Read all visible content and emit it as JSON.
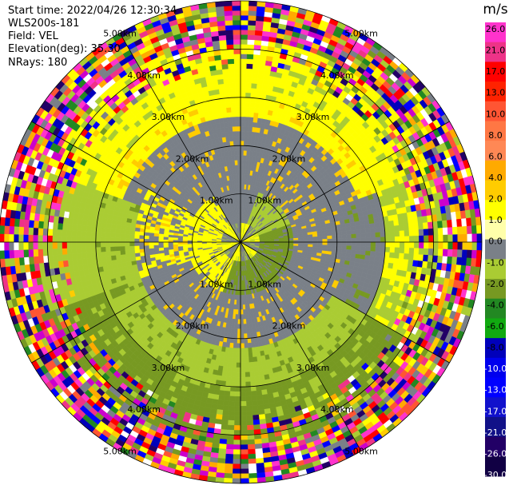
{
  "info": {
    "start_time": "Start time: 2022/04/26 12:30:34",
    "instrument": "WLS200s-181",
    "field": "Field: VEL",
    "elevation": "Elevation(deg): 35.30",
    "nrays": "NRays: 180"
  },
  "chart_data": {
    "type": "heatmap",
    "projection": "polar-ppi",
    "field": "VEL",
    "nrays": 180,
    "elevation_deg": 35.3,
    "range_rings_km": [
      1.0,
      2.0,
      3.0,
      4.0,
      5.0
    ],
    "range_ring_labels": [
      "1.00km",
      "2.00km",
      "3.00km",
      "4.00km",
      "5.00km"
    ],
    "spoke_angles_deg": [
      0,
      30,
      60,
      90,
      120,
      150,
      180,
      210,
      240,
      270,
      300,
      330
    ],
    "max_range_km": 5.0,
    "colorbar": {
      "unit": "m/s",
      "tick_labels": [
        "26.0",
        "21.0",
        "17.0",
        "13.0",
        "10.0",
        "8.0",
        "6.0",
        "4.0",
        "2.0",
        "1.0",
        "0.0",
        "-1.0",
        "-2.0",
        "-4.0",
        "-6.0",
        "-8.0",
        "-10.0",
        "-13.0",
        "-17.0",
        "-21.0",
        "-26.0",
        "-30.0"
      ],
      "colors": [
        "#ff33cc",
        "#ee3388",
        "#ff0000",
        "#ff2200",
        "#ff5533",
        "#ff7744",
        "#ff8855",
        "#ffaa00",
        "#ffcc00",
        "#ffff00",
        "#ffffaa",
        "#7a8088",
        "#aacc33",
        "#779922",
        "#228822",
        "#11aa11",
        "#0000bb",
        "#0000ee",
        "#0000ff",
        "#1111cc",
        "#111188",
        "#220066",
        "#110044"
      ],
      "vmin": -30.0,
      "vmax": 26.0
    },
    "pattern_description_sectors": {
      "near_range_km": [
        0,
        1.0
      ],
      "mid_range_km": [
        1.0,
        3.5
      ],
      "noise_range_km": [
        3.5,
        5.0
      ]
    }
  }
}
